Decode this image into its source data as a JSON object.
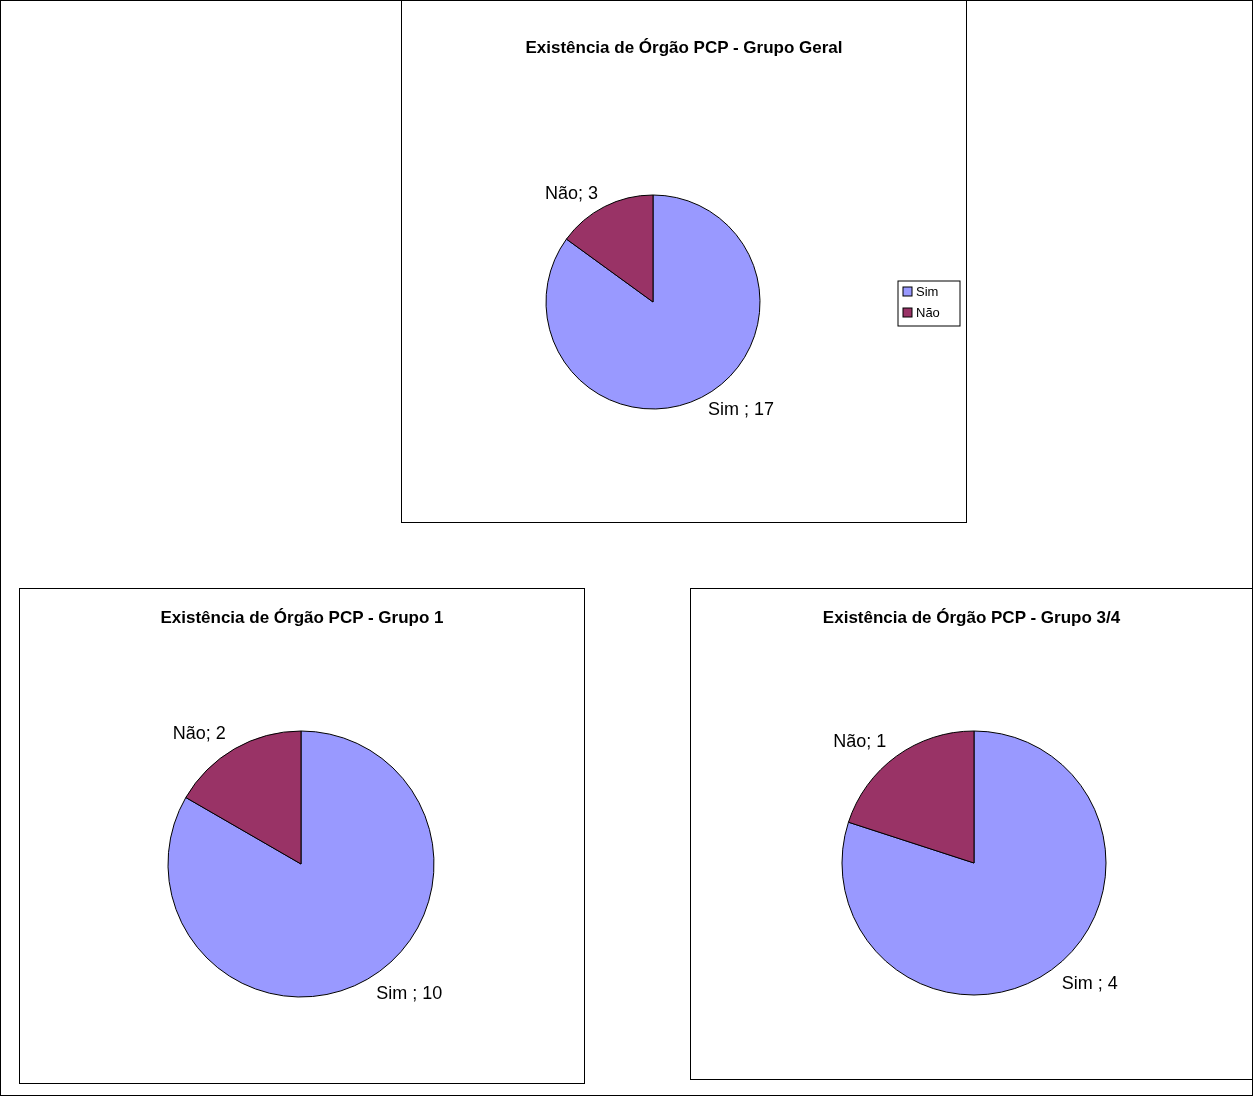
{
  "chart_data": [
    {
      "type": "pie",
      "title": "Existência de Órgão PCP - Grupo  Geral",
      "categories": [
        "Sim",
        "Não"
      ],
      "values": [
        17,
        3
      ],
      "colors": [
        "#9999ff",
        "#993366"
      ],
      "value_labels": [
        " ; 17",
        "; 3"
      ],
      "legend": "right"
    },
    {
      "type": "pie",
      "title": "Existência de Órgão PCP - Grupo 1",
      "categories": [
        "Sim",
        "Não"
      ],
      "values": [
        10,
        2
      ],
      "colors": [
        "#9999ff",
        "#993366"
      ],
      "value_labels": [
        " ; 10",
        "; 2"
      ]
    },
    {
      "type": "pie",
      "title": "Existência de Órgão PCP - Grupo 3/4",
      "categories": [
        "Sim",
        "Não"
      ],
      "values": [
        4,
        1
      ],
      "colors": [
        "#9999ff",
        "#993366"
      ],
      "value_labels": [
        " ; 4",
        "; 1"
      ]
    }
  ]
}
